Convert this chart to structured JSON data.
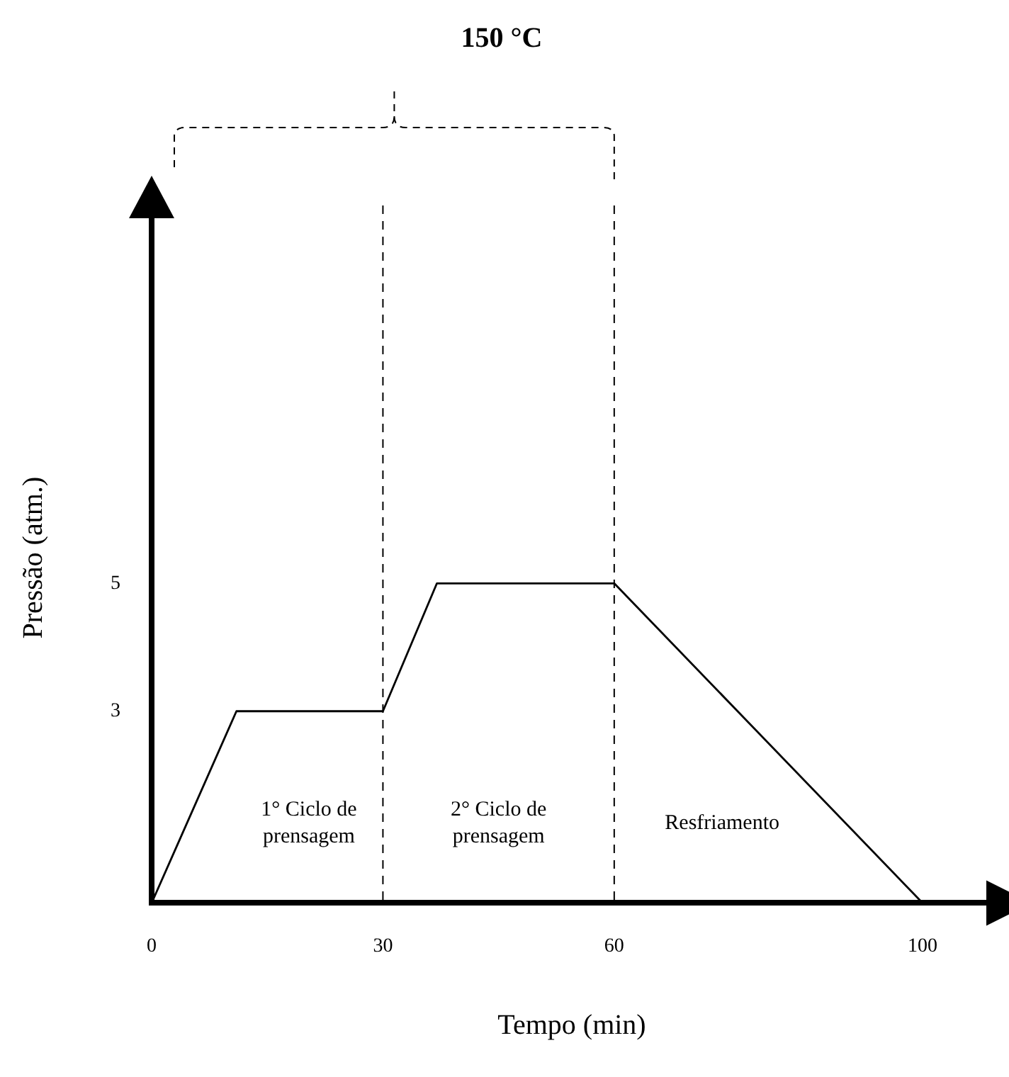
{
  "chart_data": {
    "type": "line",
    "title": "150 °C",
    "xlabel": "Tempo (min)",
    "ylabel": "Pressão (atm.)",
    "x": [
      0,
      11,
      30,
      37,
      60,
      100
    ],
    "values": [
      0,
      3,
      3,
      5,
      5,
      0
    ],
    "color": "#000000",
    "xlim": [
      0,
      109
    ],
    "xticks": [
      0,
      30,
      60,
      100
    ],
    "ylim": [
      0,
      10.8
    ],
    "yticks": [
      3,
      5
    ],
    "grid": false,
    "legend": false,
    "marker": "none",
    "line_style": "solid",
    "ref_lines": [
      {
        "axis": "x",
        "value": 30,
        "line_style": "dashed",
        "color": "#000000"
      },
      {
        "axis": "x",
        "value": 60,
        "line_style": "dashed",
        "color": "#000000"
      }
    ],
    "annotations": [
      "1° Ciclo de prensagem",
      "2° Ciclo de prensagem",
      "Resfriamento"
    ]
  }
}
